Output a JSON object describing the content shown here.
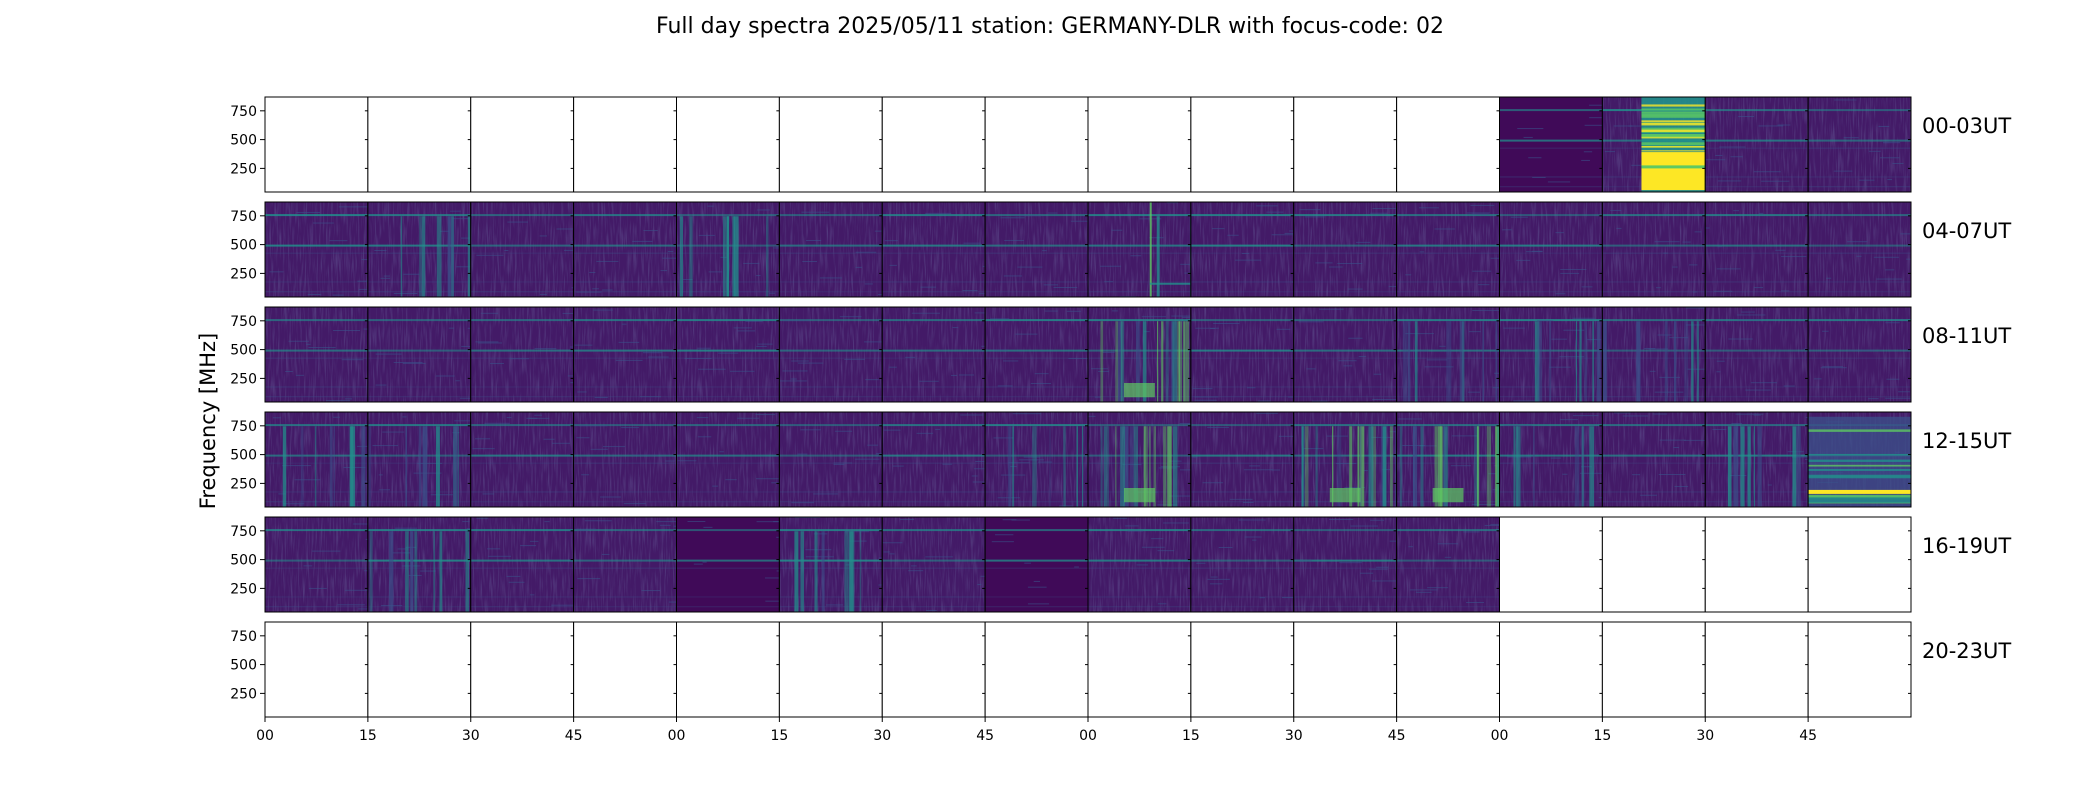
{
  "chart_data": {
    "type": "heatmap",
    "title": "Full day spectra 2025/05/11 station: GERMANY-DLR with focus-code: 02",
    "ylabel": "Frequency [MHz]",
    "xlabel": "",
    "ylim": [
      45,
      870
    ],
    "y_ticks": [
      "250",
      "500",
      "750"
    ],
    "y_tick_values": [
      250,
      500,
      750
    ],
    "x_tick_labels": [
      "00",
      "15",
      "30",
      "45",
      "00",
      "15",
      "30",
      "45",
      "00",
      "15",
      "30",
      "45",
      "00",
      "15",
      "30",
      "45"
    ],
    "rows": [
      {
        "label": "00-03UT",
        "panels": [
          "empty",
          "empty",
          "empty",
          "empty",
          "empty",
          "empty",
          "empty",
          "empty",
          "empty",
          "empty",
          "empty",
          "empty",
          "dark",
          "burst",
          "quiet",
          "quiet"
        ]
      },
      {
        "label": "04-07UT",
        "panels": [
          "quiet",
          "active",
          "quiet",
          "quiet",
          "active",
          "quiet",
          "quiet",
          "quiet",
          "spike",
          "quiet",
          "quiet",
          "quiet",
          "quiet",
          "quiet",
          "quiet",
          "quiet"
        ]
      },
      {
        "label": "08-11UT",
        "panels": [
          "quiet",
          "quiet",
          "quiet",
          "quiet",
          "quiet",
          "quiet",
          "quiet",
          "quiet",
          "strong",
          "quiet",
          "quiet",
          "active",
          "active",
          "active",
          "quiet",
          "quiet"
        ]
      },
      {
        "label": "12-15UT",
        "panels": [
          "active",
          "active",
          "quiet",
          "quiet",
          "quiet",
          "quiet",
          "quiet",
          "active",
          "strong",
          "quiet",
          "strong",
          "strong",
          "active",
          "quiet",
          "active",
          "bright"
        ]
      },
      {
        "label": "16-19UT",
        "panels": [
          "quiet",
          "active",
          "quiet",
          "quiet",
          "dark",
          "active",
          "quiet",
          "dark",
          "quiet",
          "quiet",
          "quiet",
          "quiet",
          "empty",
          "empty",
          "empty",
          "empty"
        ]
      },
      {
        "label": "20-23UT",
        "panels": [
          "empty",
          "empty",
          "empty",
          "empty",
          "empty",
          "empty",
          "empty",
          "empty",
          "empty",
          "empty",
          "empty",
          "empty",
          "empty",
          "empty",
          "empty",
          "empty"
        ]
      }
    ],
    "colormap": [
      "#440154",
      "#3b528b",
      "#21918c",
      "#5ec962",
      "#fde725"
    ],
    "grid": false,
    "legend": "none"
  }
}
